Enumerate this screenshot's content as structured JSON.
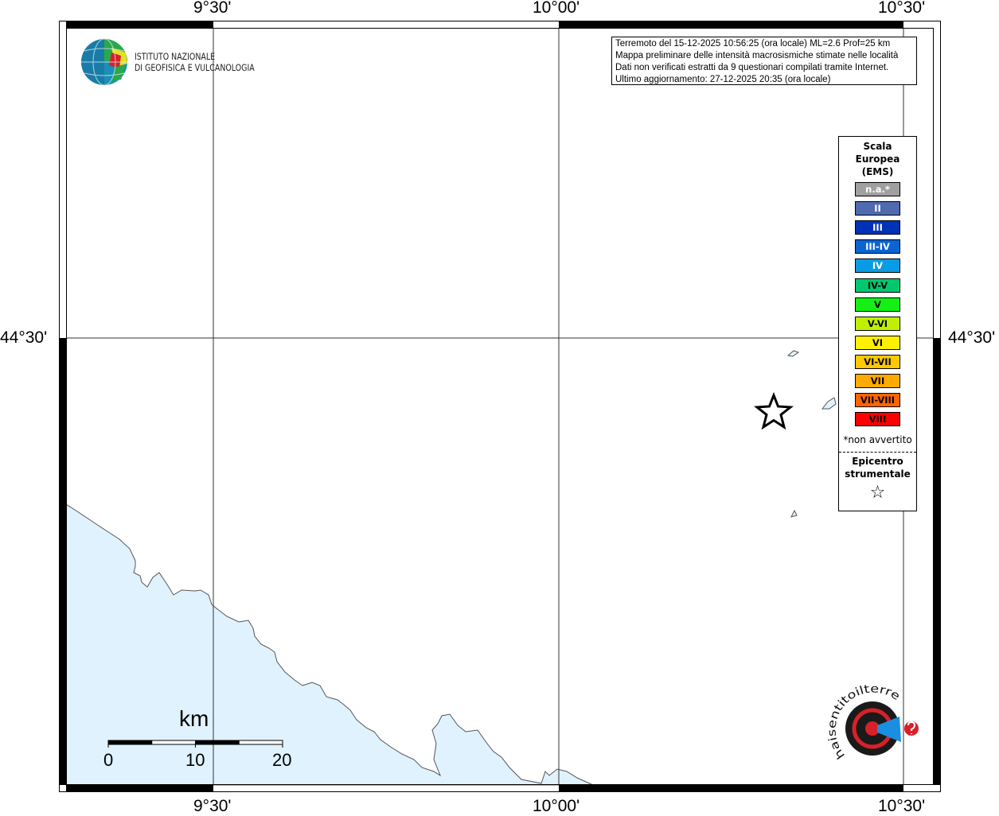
{
  "map": {
    "lon_ticks": [
      "9°30'",
      "10°00'",
      "10°30'"
    ],
    "lat_ticks": [
      "44°30'"
    ],
    "land_color": "#ffffff",
    "sea_color": "#e0f2fe",
    "epicenter_icon": "star-outline-icon"
  },
  "info_box": {
    "lines": [
      "Terremoto del 15-12-2025 10:56:25 (ora locale) ML=2.6 Prof=25 km",
      "Mappa preliminare delle intensità macrosismiche stimate nelle località",
      "Dati non verificati estratti da 9 questionari compilati tramite Internet.",
      "Ultimo aggiornamento: 27-12-2025 20:35 (ora locale)"
    ]
  },
  "logo": {
    "name_line1": "ISTITUTO NAZIONALE",
    "name_line2": "DI GEOFISICA E VULCANOLOGIA"
  },
  "legend": {
    "title": [
      "Scala",
      "Europea",
      "(EMS)"
    ],
    "items": [
      {
        "label": "n.a.*",
        "color": "#a0a0a0",
        "text_color": "#ffffff"
      },
      {
        "label": "II",
        "color": "#4f6aae",
        "text_color": "#ffffff"
      },
      {
        "label": "III",
        "color": "#0032b8",
        "text_color": "#ffffff"
      },
      {
        "label": "III-IV",
        "color": "#0a64d2",
        "text_color": "#ffffff"
      },
      {
        "label": "IV",
        "color": "#0a9be6",
        "text_color": "#ffffff"
      },
      {
        "label": "IV-V",
        "color": "#00c86e",
        "text_color": "#000000"
      },
      {
        "label": "V",
        "color": "#14f014",
        "text_color": "#000000"
      },
      {
        "label": "V-VI",
        "color": "#c0f000",
        "text_color": "#000000"
      },
      {
        "label": "VI",
        "color": "#fff000",
        "text_color": "#000000"
      },
      {
        "label": "VI-VII",
        "color": "#ffc800",
        "text_color": "#000000"
      },
      {
        "label": "VII",
        "color": "#ffaa00",
        "text_color": "#000000"
      },
      {
        "label": "VII-VIII",
        "color": "#ff6400",
        "text_color": "#000000"
      },
      {
        "label": "VIII",
        "color": "#ff0000",
        "text_color": "#000000"
      }
    ],
    "note": "*non avvertito",
    "epicenter_label": [
      "Epicentro",
      "strumentale"
    ],
    "epicenter_symbol": "☆"
  },
  "scale_bar": {
    "unit": "km",
    "labels": [
      "0",
      "10",
      "20"
    ]
  },
  "hsit_logo": {
    "text": "www.haisentitoilterremoto.it"
  }
}
